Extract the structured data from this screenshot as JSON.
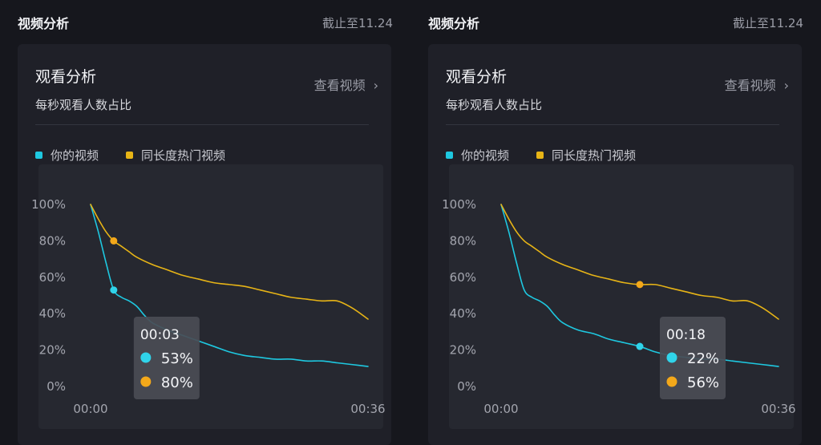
{
  "panels": [
    {
      "section_title": "视频分析",
      "date": "截止至11.24",
      "card_title": "观看分析",
      "view_link": "查看视频",
      "subtitle": "每秒观看人数占比",
      "legend": [
        {
          "label": "你的视频",
          "color": "#1ec8e0"
        },
        {
          "label": "同长度热门视频",
          "color": "#e7b416"
        }
      ]
    },
    {
      "section_title": "视频分析",
      "date": "截止至11.24",
      "card_title": "观看分析",
      "view_link": "查看视频",
      "subtitle": "每秒观看人数占比",
      "legend": [
        {
          "label": "你的视频",
          "color": "#1ec8e0"
        },
        {
          "label": "同长度热门视频",
          "color": "#e7b416"
        }
      ]
    }
  ],
  "chart_data": [
    {
      "type": "line",
      "x_ticks": [
        "00:00",
        "00:36"
      ],
      "y_ticks": [
        "100%",
        "80%",
        "60%",
        "40%",
        "20%",
        "0%"
      ],
      "xlim": [
        0,
        36
      ],
      "ylim": [
        0,
        100
      ],
      "series": [
        {
          "name": "你的视频",
          "color": "#1ec8e0",
          "x": [
            0,
            1,
            2,
            3,
            4,
            5,
            6,
            7,
            8,
            10,
            12,
            14,
            16,
            18,
            20,
            22,
            24,
            26,
            28,
            30,
            32,
            34,
            36
          ],
          "y": [
            100,
            85,
            68,
            53,
            49,
            47,
            44,
            39,
            35,
            31,
            28,
            25,
            22,
            19,
            17,
            16,
            15,
            15,
            14,
            14,
            13,
            12,
            11
          ]
        },
        {
          "name": "同长度热门视频",
          "color": "#e7b416",
          "x": [
            0,
            1,
            2,
            3,
            4,
            5,
            6,
            8,
            10,
            12,
            14,
            16,
            18,
            20,
            22,
            24,
            26,
            28,
            30,
            32,
            34,
            36
          ],
          "y": [
            100,
            92,
            85,
            80,
            77,
            74,
            71,
            67,
            64,
            61,
            59,
            57,
            56,
            55,
            53,
            51,
            49,
            48,
            47,
            47,
            43,
            37
          ]
        }
      ],
      "tooltip": {
        "time": "00:03",
        "x": 3,
        "values": [
          "53%",
          "80%"
        ],
        "y": [
          53,
          80
        ]
      }
    },
    {
      "type": "line",
      "x_ticks": [
        "00:00",
        "00:36"
      ],
      "y_ticks": [
        "100%",
        "80%",
        "60%",
        "40%",
        "20%",
        "0%"
      ],
      "xlim": [
        0,
        36
      ],
      "ylim": [
        0,
        100
      ],
      "series": [
        {
          "name": "你的视频",
          "color": "#1ec8e0",
          "x": [
            0,
            1,
            2,
            3,
            4,
            5,
            6,
            7,
            8,
            10,
            12,
            14,
            16,
            18,
            20,
            22,
            24,
            26,
            28,
            30,
            32,
            34,
            36
          ],
          "y": [
            100,
            85,
            68,
            53,
            49,
            47,
            44,
            39,
            35,
            31,
            29,
            26,
            24,
            22,
            19,
            17,
            16,
            15,
            15,
            14,
            13,
            12,
            11
          ]
        },
        {
          "name": "同长度热门视频",
          "color": "#e7b416",
          "x": [
            0,
            1,
            2,
            3,
            4,
            5,
            6,
            8,
            10,
            12,
            14,
            16,
            18,
            20,
            22,
            24,
            26,
            28,
            30,
            32,
            34,
            36
          ],
          "y": [
            100,
            92,
            85,
            80,
            77,
            74,
            71,
            67,
            64,
            61,
            59,
            57,
            56,
            56,
            54,
            52,
            50,
            49,
            47,
            47,
            43,
            37
          ]
        }
      ],
      "tooltip": {
        "time": "00:18",
        "x": 18,
        "values": [
          "22%",
          "56%"
        ],
        "y": [
          22,
          56
        ]
      }
    }
  ]
}
